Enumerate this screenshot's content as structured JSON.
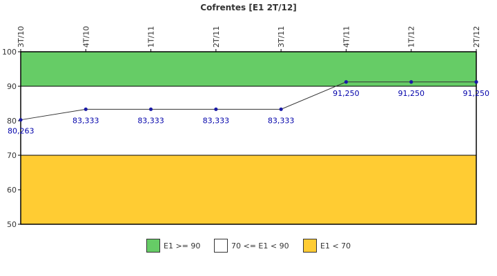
{
  "chart_data": {
    "type": "line",
    "title": "Cofrentes [E1 2T/12]",
    "categories": [
      "3T/10",
      "4T/10",
      "1T/11",
      "2T/11",
      "3T/11",
      "4T/11",
      "1T/12",
      "2T/12"
    ],
    "series": [
      {
        "values": [
          80.263,
          83.333,
          83.333,
          83.333,
          83.333,
          91.25,
          91.25,
          91.25
        ]
      }
    ],
    "data_labels": [
      "80,263",
      "83,333",
      "83,333",
      "83,333",
      "83,333",
      "91,250",
      "91,250",
      "91,250"
    ],
    "ylim": [
      50,
      100
    ],
    "yticks": [
      50,
      60,
      70,
      80,
      90,
      100
    ],
    "bands": [
      {
        "from": 90,
        "to": 100,
        "color": "#66cc66",
        "label": "E1 >= 90"
      },
      {
        "from": 70,
        "to": 90,
        "color": "#ffffff",
        "label": "70 <= E1 < 90"
      },
      {
        "from": 50,
        "to": 70,
        "color": "#ffcc33",
        "label": "E1 < 70"
      }
    ],
    "line_color": "#333333",
    "marker_color": "#1a1aa6",
    "label_color": "#0000aa",
    "grid": false,
    "legend_position": "bottom"
  }
}
